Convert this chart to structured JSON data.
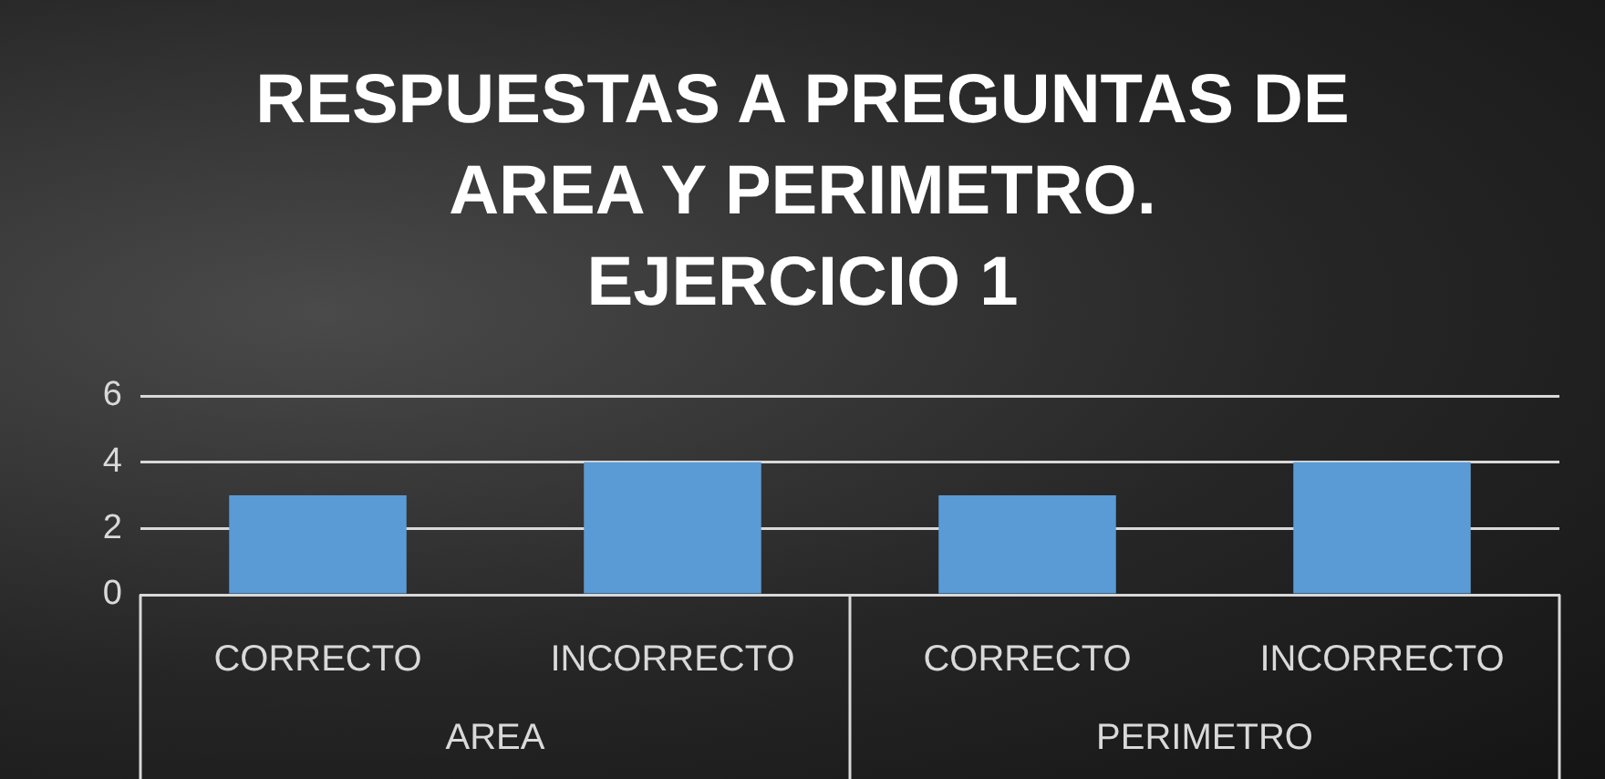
{
  "chart_data": {
    "type": "bar",
    "title": "RESPUESTAS A PREGUNTAS DE AREA Y PERIMETRO. EJERCICIO 1",
    "categories": [
      "CORRECTO",
      "INCORRECTO",
      "CORRECTO",
      "INCORRECTO"
    ],
    "values": [
      3,
      4,
      3,
      4
    ],
    "color": "#5b9bd5",
    "ylim": [
      0,
      6
    ],
    "yticks": [
      0,
      2,
      4,
      6
    ],
    "grid": "y",
    "legend": false,
    "annotations": [
      "AREA",
      "PERIMETRO"
    ]
  }
}
